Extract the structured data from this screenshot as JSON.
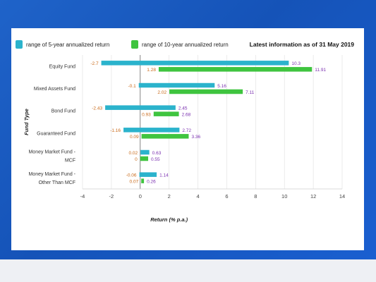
{
  "chart_data": {
    "type": "bar",
    "orientation": "horizontal",
    "title": "",
    "note": "Latest information as of 31 May 2019",
    "xlabel": "Return (% p.a.)",
    "ylabel": "Fund Type",
    "xlim": [
      -4,
      14
    ],
    "xticks": [
      "-4",
      "-2",
      "0",
      "2",
      "4",
      "6",
      "8",
      "10",
      "12",
      "14"
    ],
    "grid": "vertical",
    "legend_position": "top",
    "categories": [
      {
        "name": "Equity Fund",
        "lines": [
          "Equity Fund"
        ]
      },
      {
        "name": "Mixed Assets Fund",
        "lines": [
          "Mixed Assets Fund"
        ]
      },
      {
        "name": "Bond Fund",
        "lines": [
          "Bond Fund"
        ]
      },
      {
        "name": "Guaranteed Fund",
        "lines": [
          "Guaranteed Fund"
        ]
      },
      {
        "name": "Money Market Fund - MCF",
        "lines": [
          "Money Market Fund -",
          "MCF"
        ]
      },
      {
        "name": "Money Market Fund - Other Than MCF",
        "lines": [
          "Money Market Fund -",
          "Other Than MCF"
        ]
      }
    ],
    "series": [
      {
        "name": "range of 5-year annualized return",
        "color": "#2bb3cc",
        "ranges": [
          [
            -2.7,
            10.3
          ],
          [
            -0.1,
            5.16
          ],
          [
            -2.43,
            2.45
          ],
          [
            -1.16,
            2.72
          ],
          [
            0.02,
            0.63
          ],
          [
            -0.06,
            1.14
          ]
        ],
        "labels": [
          [
            "-2.7",
            "10.3"
          ],
          [
            "-0.1",
            "5.16"
          ],
          [
            "-2.43",
            "2.45"
          ],
          [
            "-1.16",
            "2.72"
          ],
          [
            "0.02",
            "0.63"
          ],
          [
            "-0.06",
            "1.14"
          ]
        ]
      },
      {
        "name": "range of 10-year annualized return",
        "color": "#3fc43f",
        "ranges": [
          [
            1.28,
            11.91
          ],
          [
            2.02,
            7.11
          ],
          [
            0.93,
            2.68
          ],
          [
            0.09,
            3.36
          ],
          [
            0,
            0.55
          ],
          [
            0.07,
            0.26
          ]
        ],
        "labels": [
          [
            "1.28",
            "11.91"
          ],
          [
            "2.02",
            "7.11"
          ],
          [
            "0.93",
            "2.68"
          ],
          [
            "0.09",
            "3.36"
          ],
          [
            "0",
            "0.55"
          ],
          [
            "0.07",
            "0.26"
          ]
        ]
      }
    ],
    "min_label_color": "#c96a1a",
    "max_label_color": "#7a2fb0"
  }
}
